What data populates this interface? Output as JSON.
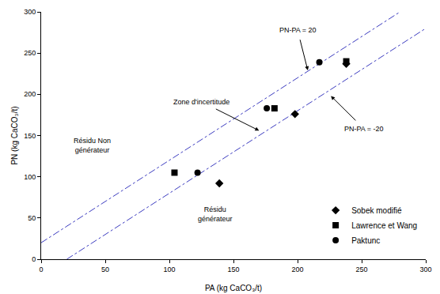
{
  "chart_data": {
    "type": "scatter",
    "x_label": "PA (kg CaCO₃/t)",
    "y_label": "PN (kg CaCO₃/t)",
    "xlim": [
      0,
      300
    ],
    "xticks": [
      0,
      50,
      100,
      150,
      200,
      250,
      300
    ],
    "ylim": [
      0,
      300
    ],
    "yticks": [
      0,
      50,
      100,
      150,
      200,
      250,
      300
    ],
    "grid": false,
    "legend": "bottom right",
    "series": [
      {
        "name": "Sobek modifié",
        "color": "#000000",
        "marker": "diamond",
        "x": [
          139,
          198,
          238
        ],
        "values": [
          92,
          176,
          237
        ]
      },
      {
        "name": "Lawrence et Wang",
        "color": "#000000",
        "marker": "square",
        "x": [
          104,
          182,
          238
        ],
        "values": [
          105,
          183,
          240
        ]
      },
      {
        "name": "Paktunc",
        "color": "#000000",
        "marker": "circle",
        "x": [
          122,
          176,
          217
        ],
        "values": [
          105,
          183,
          239
        ]
      }
    ],
    "reference_lines": [
      {
        "x": [
          0,
          280
        ],
        "values": [
          20,
          300
        ],
        "color": "#3c3cc0",
        "line_style": "dashdot"
      },
      {
        "x": [
          20,
          300
        ],
        "values": [
          0,
          280
        ],
        "color": "#3c3cc0",
        "line_style": "dashdot"
      }
    ],
    "annotations": [
      {
        "text": "PN-PA = 20",
        "x": 200,
        "y": 278,
        "arrow_x": 208,
        "arrow_y": 229
      },
      {
        "text": "PN-PA = -20",
        "x": 252,
        "y": 158,
        "arrow_x": 226,
        "arrow_y": 198
      },
      {
        "text": "Zone d'incertitude",
        "x": 125,
        "y": 191,
        "arrow_x": 170,
        "arrow_y": 156
      },
      {
        "text": "Résidu Non\ngénérateur",
        "x": 40,
        "y": 138
      },
      {
        "text": "Résidu\ngénérateur",
        "x": 136,
        "y": 55
      }
    ]
  }
}
